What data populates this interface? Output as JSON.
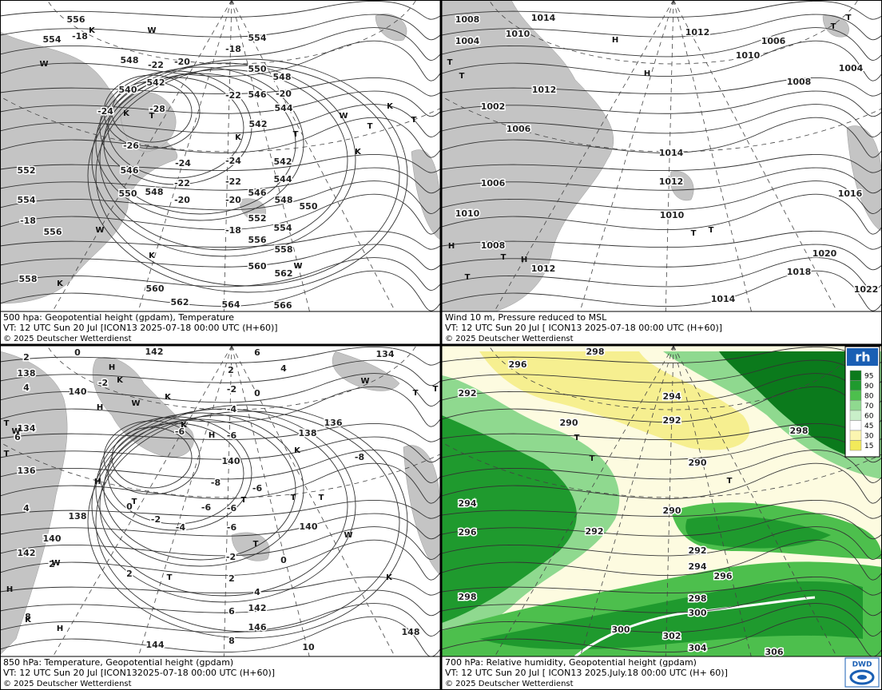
{
  "panels": [
    {
      "caption": [
        "500 hpa: Geopotential height (gpdam), Temperature",
        "VT: 12 UTC Sun  20 Jul [ICON13 2025-07-18 00:00 UTC  (H+60)]",
        "© 2025 Deutscher Wetterdienst"
      ],
      "height_labels": [
        "556",
        "554",
        "548",
        "550",
        "548",
        "546",
        "544",
        "542",
        "540",
        "542",
        "542",
        "544",
        "546",
        "548",
        "550",
        "552",
        "554",
        "556",
        "558",
        "560",
        "562",
        "560",
        "562",
        "564",
        "566",
        "552",
        "550",
        "548",
        "546",
        "554",
        "556",
        "558",
        "554"
      ],
      "temp_labels": [
        "-18",
        "-20",
        "-22",
        "-18",
        "-22",
        "-20",
        "-24",
        "-28",
        "-26",
        "-24",
        "-24",
        "-22",
        "-22",
        "-20",
        "-20",
        "-18",
        "-18"
      ],
      "symbols": [
        "K",
        "W",
        "W",
        "K",
        "T",
        "K",
        "T",
        "K",
        "W",
        "T",
        "T",
        "K",
        "W",
        "K",
        "W",
        "K"
      ]
    },
    {
      "caption": [
        "Wind 10 m, Pressure reduced to MSL",
        "VT: 12 UTC Sun  20 Jul [ ICON13 2025-07-18 00:00 UTC  (H+60)]",
        "© 2025 Deutscher Wetterdienst"
      ],
      "pressure_labels": [
        "1008",
        "1004",
        "1010",
        "1014",
        "1012",
        "1006",
        "1010",
        "1008",
        "1004",
        "1012",
        "1002",
        "1006",
        "1014",
        "1012",
        "1010",
        "1006",
        "1010",
        "1008",
        "1012",
        "1016",
        "1020",
        "1018",
        "1022",
        "1014"
      ],
      "symbols": [
        "H",
        "H",
        "T",
        "T",
        "T",
        "T",
        "H",
        "T",
        "H",
        "T",
        "T",
        "T"
      ]
    },
    {
      "caption": [
        "850 hPa:  Temperature, Geopotential height (gpdam)",
        "VT: 12 UTC Sun  20 Jul [ICON132025-07-18 00:00 UTC (H+60)]",
        "© 2025 Deutscher Wetterdienst"
      ],
      "height_labels": [
        "142",
        "134",
        "138",
        "140",
        "134",
        "136",
        "138",
        "140",
        "142",
        "138",
        "136",
        "140",
        "140",
        "142",
        "144",
        "146",
        "148"
      ],
      "temp_labels": [
        "2",
        "0",
        "6",
        "4",
        "2",
        "4",
        "-2",
        "-2",
        "0",
        "-4",
        "-6",
        "-6",
        "-8",
        "-8",
        "-6",
        "-6",
        "-6",
        "-2",
        "-4",
        "-6",
        "0",
        "-2",
        "0",
        "2",
        "2",
        "4",
        "6",
        "8",
        "10",
        "6",
        "4",
        "2",
        "8"
      ],
      "symbols": [
        "H",
        "H",
        "K",
        "W",
        "K",
        "K",
        "H",
        "W",
        "T",
        "T",
        "H",
        "T",
        "T",
        "T",
        "T",
        "K",
        "W",
        "T",
        "K",
        "T",
        "W",
        "H",
        "H",
        "T",
        "W",
        "T",
        "K"
      ]
    },
    {
      "caption": [
        "700 hPa:  Relative humidity, Geopotential height (gpdam)",
        "VT: 12 UTC Sun  20 Jul [ ICON13  2025.July.18 00:00 UTC (H+ 60)]",
        "© 2025 Deutscher Wetterdienst"
      ],
      "height_labels": [
        "298",
        "296",
        "292",
        "294",
        "292",
        "290",
        "290",
        "290",
        "294",
        "296",
        "292",
        "292",
        "294",
        "296",
        "298",
        "300",
        "298",
        "300",
        "302",
        "304",
        "306",
        "298"
      ],
      "symbols": [
        "T",
        "T",
        "T"
      ]
    }
  ],
  "legend": {
    "title": "rh",
    "levels": [
      {
        "label": "95",
        "color": "#0b7a1c"
      },
      {
        "label": "90",
        "color": "#1f9a2e"
      },
      {
        "label": "80",
        "color": "#4dbf4d"
      },
      {
        "label": "70",
        "color": "#8fd98f"
      },
      {
        "label": "60",
        "color": "#c9efc9"
      },
      {
        "label": "45",
        "color": "#ffffff"
      },
      {
        "label": "30",
        "color": "#fbf5b0"
      },
      {
        "label": "15",
        "color": "#f2ea5a"
      }
    ]
  },
  "logo": "DWD"
}
